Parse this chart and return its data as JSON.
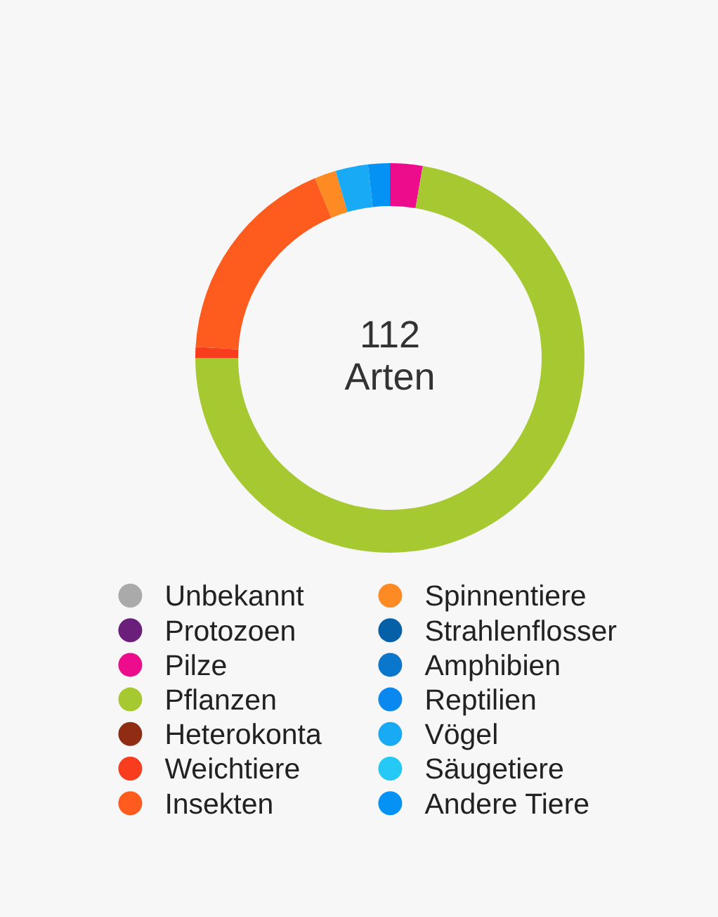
{
  "chart_data": {
    "type": "donut",
    "categories": [
      "Unbekannt",
      "Protozoen",
      "Pilze",
      "Pflanzen",
      "Heterokonta",
      "Weichtiere",
      "Insekten",
      "Spinnentiere",
      "Strahlenflosser",
      "Amphibien",
      "Reptilien",
      "Vögel",
      "Säugetiere",
      "Andere Tiere"
    ],
    "values": [
      0,
      0,
      2.7,
      72.3,
      0,
      0.9,
      17.8,
      1.8,
      0,
      0,
      0,
      2.7,
      0,
      1.8
    ],
    "colors": [
      "#aaaaaa",
      "#6a1f7a",
      "#ec0c8c",
      "#a6c932",
      "#912c14",
      "#f83c1e",
      "#fe5b1e",
      "#fe8a24",
      "#0560a8",
      "#0a76cc",
      "#0a88f0",
      "#18aaf5",
      "#24c9f5",
      "#0592f5"
    ],
    "annotations": [
      "112",
      "Arten"
    ],
    "legend": "bottom"
  }
}
